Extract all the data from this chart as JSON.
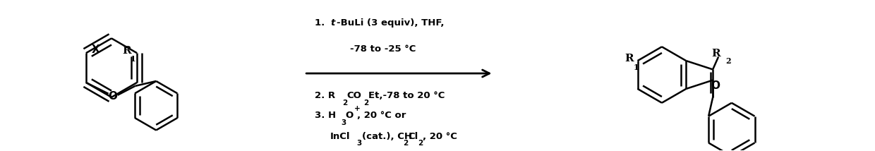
{
  "bg_color": "#ffffff",
  "line_color": "#000000",
  "lw": 1.8,
  "fig_width": 12.4,
  "fig_height": 2.14,
  "dpi": 100,
  "xlim": [
    0,
    12.4
  ],
  "ylim": [
    0,
    2.14
  ]
}
